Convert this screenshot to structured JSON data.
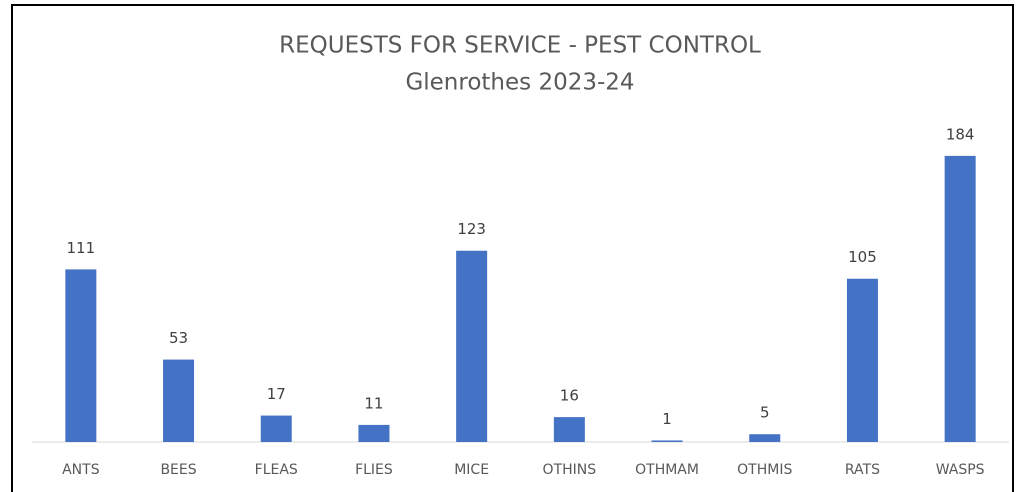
{
  "chart_data": {
    "type": "bar",
    "title": "REQUESTS FOR SERVICE - PEST CONTROL",
    "subtitle": "Glenrothes 2023-24",
    "categories": [
      "ANTS",
      "BEES",
      "FLEAS",
      "FLIES",
      "MICE",
      "OTHINS",
      "OTHMAM",
      "OTHMIS",
      "RATS",
      "WASPS"
    ],
    "values": [
      111,
      53,
      17,
      11,
      123,
      16,
      1,
      5,
      105,
      184
    ],
    "color": "#4472c4",
    "ylim": [
      0,
      200
    ]
  }
}
